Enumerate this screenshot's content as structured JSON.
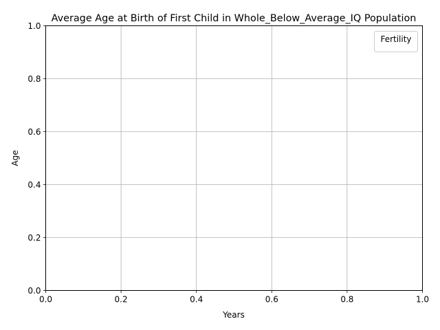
{
  "chart_data": {
    "type": "line",
    "title": "Average Age at Birth of First Child in Whole_Below_Average_IQ Population",
    "xlabel": "Years",
    "ylabel": "Age",
    "xlim": [
      0.0,
      1.0
    ],
    "ylim": [
      0.0,
      1.0
    ],
    "xticks": [
      "0.0",
      "0.2",
      "0.4",
      "0.6",
      "0.8",
      "1.0"
    ],
    "yticks": [
      "0.0",
      "0.2",
      "0.4",
      "0.6",
      "0.8",
      "1.0"
    ],
    "grid": true,
    "legend": {
      "title": "Fertility",
      "placement": "top-right",
      "entries": []
    },
    "series": []
  }
}
